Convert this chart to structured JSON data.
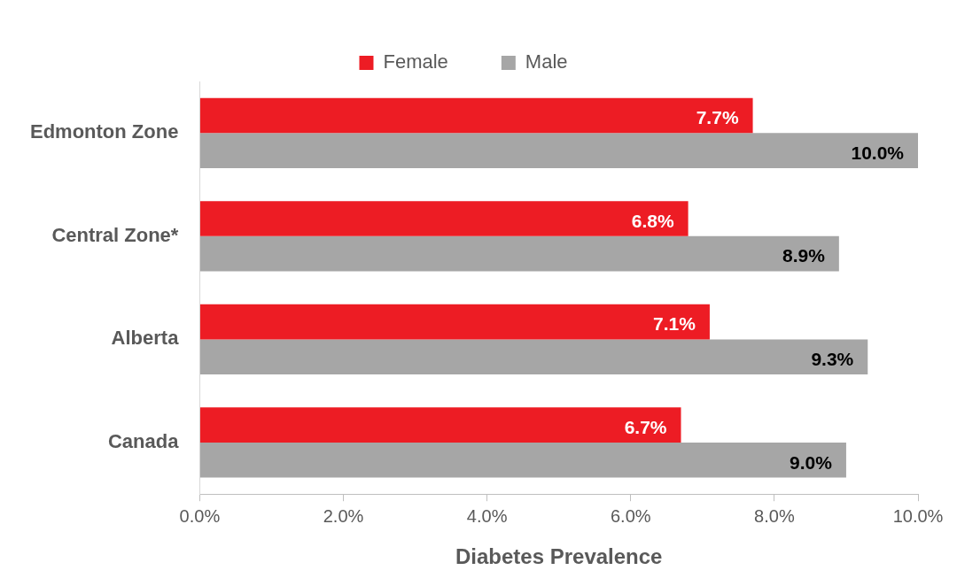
{
  "chart_data": {
    "type": "bar",
    "orientation": "horizontal",
    "xlabel": "Diabetes Prevalence",
    "categories": [
      "Edmonton Zone",
      "Central Zone*",
      "Alberta",
      "Canada"
    ],
    "series": [
      {
        "name": "Female",
        "color": "#ed1c24",
        "values": [
          7.7,
          6.8,
          7.1,
          6.7
        ],
        "value_labels": [
          "7.7%",
          "6.8%",
          "7.1%",
          "6.7%"
        ]
      },
      {
        "name": "Male",
        "color": "#a6a6a6",
        "values": [
          10.0,
          8.9,
          9.3,
          9.0
        ],
        "value_labels": [
          "10.0%",
          "8.9%",
          "9.3%",
          "9.0%"
        ]
      }
    ],
    "xlim": [
      0,
      10
    ],
    "xticks": [
      {
        "value": 0,
        "label": "0.0%"
      },
      {
        "value": 2,
        "label": "2.0%"
      },
      {
        "value": 4,
        "label": "4.0%"
      },
      {
        "value": 6,
        "label": "6.0%"
      },
      {
        "value": 8,
        "label": "8.0%"
      },
      {
        "value": 10,
        "label": "10.0%"
      }
    ],
    "grid": false,
    "legend": "top"
  }
}
